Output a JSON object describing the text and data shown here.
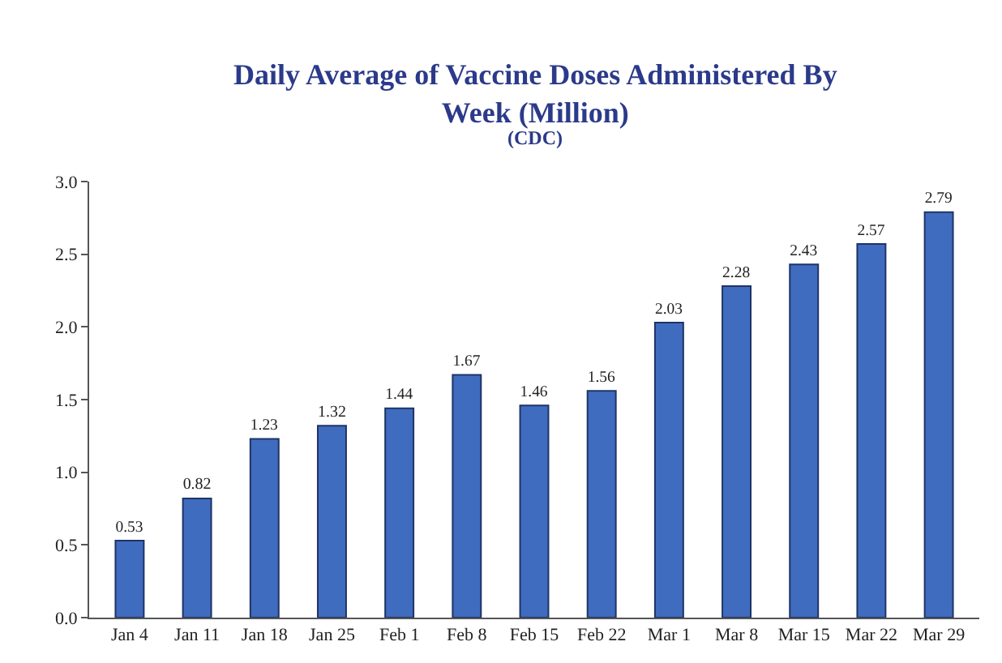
{
  "chart_data": {
    "type": "bar",
    "title": "Daily Average of Vaccine Doses Administered By Week (Million)",
    "subtitle": "(CDC)",
    "categories": [
      "Jan 4",
      "Jan 11",
      "Jan 18",
      "Jan 25",
      "Feb 1",
      "Feb 8",
      "Feb 15",
      "Feb 22",
      "Mar 1",
      "Mar 8",
      "Mar 15",
      "Mar 22",
      "Mar 29"
    ],
    "values": [
      0.53,
      0.82,
      1.23,
      1.32,
      1.44,
      1.67,
      1.46,
      1.56,
      2.03,
      2.28,
      2.43,
      2.57,
      2.79
    ],
    "color": "#3f6cbf",
    "ylim": [
      0,
      3
    ],
    "yticks": [
      {
        "value": 0,
        "label": "0.0"
      },
      {
        "value": 0.5,
        "label": "0.5"
      },
      {
        "value": 1,
        "label": "1.0"
      },
      {
        "value": 1.5,
        "label": "1.5"
      },
      {
        "value": 2,
        "label": "2.0"
      },
      {
        "value": 2.5,
        "label": "2.5"
      },
      {
        "value": 3,
        "label": "3.0"
      }
    ],
    "data_labels": true
  }
}
